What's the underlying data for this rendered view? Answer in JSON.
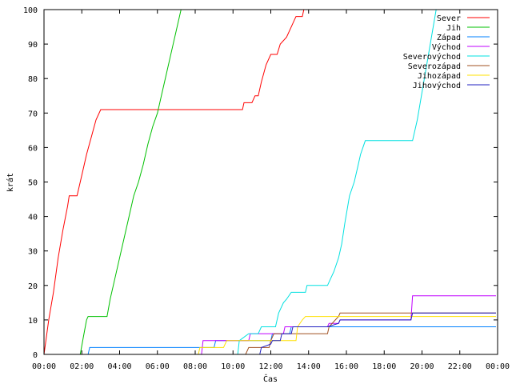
{
  "chart_data": {
    "type": "line",
    "title": "",
    "xlabel": "Čas",
    "ylabel": "krát",
    "xlim": [
      "00:00",
      "00:00"
    ],
    "ylim": [
      0,
      100
    ],
    "grid": false,
    "legend_position": "top-right",
    "x_ticks": [
      "00:00",
      "02:00",
      "04:00",
      "06:00",
      "08:00",
      "10:00",
      "12:00",
      "14:00",
      "16:00",
      "18:00",
      "20:00",
      "22:00",
      "00:00"
    ],
    "y_ticks": [
      "0",
      "10",
      "20",
      "30",
      "40",
      "50",
      "60",
      "70",
      "80",
      "90",
      "100"
    ],
    "series": [
      {
        "name": "Sever",
        "color": "#ff0000",
        "points": [
          [
            "00:00",
            0
          ],
          [
            "00:15",
            10
          ],
          [
            "00:30",
            18
          ],
          [
            "00:45",
            28
          ],
          [
            "01:00",
            36
          ],
          [
            "01:15",
            43
          ],
          [
            "01:20",
            46
          ],
          [
            "01:45",
            46
          ],
          [
            "02:00",
            52
          ],
          [
            "02:15",
            58
          ],
          [
            "02:30",
            63
          ],
          [
            "02:45",
            68
          ],
          [
            "03:00",
            71
          ],
          [
            "05:00",
            71
          ],
          [
            "07:00",
            71
          ],
          [
            "09:00",
            71
          ],
          [
            "10:30",
            71
          ],
          [
            "10:35",
            73
          ],
          [
            "11:00",
            73
          ],
          [
            "11:10",
            75
          ],
          [
            "11:20",
            75
          ],
          [
            "11:30",
            79
          ],
          [
            "11:45",
            84
          ],
          [
            "12:00",
            87
          ],
          [
            "12:20",
            87
          ],
          [
            "12:30",
            90
          ],
          [
            "12:50",
            92
          ],
          [
            "13:05",
            95
          ],
          [
            "13:20",
            98
          ],
          [
            "13:40",
            98
          ],
          [
            "13:45",
            100
          ]
        ]
      },
      {
        "name": "Jih",
        "color": "#00c000",
        "points": [
          [
            "01:55",
            0
          ],
          [
            "02:05",
            5
          ],
          [
            "02:15",
            10
          ],
          [
            "02:20",
            11
          ],
          [
            "03:20",
            11
          ],
          [
            "03:30",
            16
          ],
          [
            "03:45",
            22
          ],
          [
            "04:00",
            28
          ],
          [
            "04:15",
            34
          ],
          [
            "04:30",
            40
          ],
          [
            "04:45",
            46
          ],
          [
            "05:00",
            50
          ],
          [
            "05:15",
            55
          ],
          [
            "05:30",
            61
          ],
          [
            "05:45",
            66
          ],
          [
            "06:00",
            70
          ],
          [
            "06:15",
            76
          ],
          [
            "06:30",
            82
          ],
          [
            "06:45",
            88
          ],
          [
            "07:00",
            94
          ],
          [
            "07:15",
            100
          ]
        ]
      },
      {
        "name": "Západ",
        "color": "#0080ff",
        "points": [
          [
            "02:20",
            0
          ],
          [
            "02:25",
            2
          ],
          [
            "04:00",
            2
          ],
          [
            "06:00",
            2
          ],
          [
            "08:00",
            2
          ],
          [
            "09:00",
            2
          ],
          [
            "09:05",
            4
          ],
          [
            "12:00",
            4
          ],
          [
            "12:05",
            6
          ],
          [
            "13:00",
            6
          ],
          [
            "13:05",
            8
          ],
          [
            "16:00",
            8
          ],
          [
            "20:00",
            8
          ],
          [
            "23:55",
            8
          ]
        ]
      },
      {
        "name": "Východ",
        "color": "#c000ff",
        "points": [
          [
            "08:20",
            0
          ],
          [
            "08:25",
            4
          ],
          [
            "10:50",
            4
          ],
          [
            "10:55",
            6
          ],
          [
            "12:40",
            6
          ],
          [
            "12:45",
            8
          ],
          [
            "15:00",
            8
          ],
          [
            "15:05",
            9
          ],
          [
            "15:35",
            9
          ],
          [
            "15:40",
            10
          ],
          [
            "19:25",
            10
          ],
          [
            "19:30",
            17
          ],
          [
            "23:55",
            17
          ]
        ]
      },
      {
        "name": "Severovýchod",
        "color": "#00e0e0",
        "points": [
          [
            "10:15",
            0
          ],
          [
            "10:20",
            4
          ],
          [
            "10:50",
            6
          ],
          [
            "11:20",
            6
          ],
          [
            "11:30",
            8
          ],
          [
            "12:15",
            8
          ],
          [
            "12:25",
            12
          ],
          [
            "12:40",
            15
          ],
          [
            "12:50",
            16
          ],
          [
            "13:05",
            18
          ],
          [
            "13:50",
            18
          ],
          [
            "13:55",
            20
          ],
          [
            "15:00",
            20
          ],
          [
            "15:10",
            22
          ],
          [
            "15:20",
            24
          ],
          [
            "15:35",
            28
          ],
          [
            "15:45",
            32
          ],
          [
            "15:55",
            38
          ],
          [
            "16:10",
            46
          ],
          [
            "16:25",
            50
          ],
          [
            "16:35",
            54
          ],
          [
            "16:45",
            58
          ],
          [
            "17:00",
            62
          ],
          [
            "19:30",
            62
          ],
          [
            "19:45",
            68
          ],
          [
            "20:00",
            76
          ],
          [
            "20:15",
            84
          ],
          [
            "20:30",
            92
          ],
          [
            "20:45",
            100
          ]
        ]
      },
      {
        "name": "Severozápad",
        "color": "#a05020",
        "points": [
          [
            "10:40",
            0
          ],
          [
            "10:50",
            2
          ],
          [
            "11:55",
            2
          ],
          [
            "12:00",
            4
          ],
          [
            "12:10",
            6
          ],
          [
            "15:00",
            6
          ],
          [
            "15:05",
            8
          ],
          [
            "15:25",
            10
          ],
          [
            "15:35",
            11
          ],
          [
            "15:40",
            12
          ],
          [
            "18:00",
            12
          ],
          [
            "23:55",
            12
          ]
        ]
      },
      {
        "name": "Jihozápad",
        "color": "#ffe000",
        "points": [
          [
            "08:10",
            0
          ],
          [
            "08:15",
            2
          ],
          [
            "09:30",
            2
          ],
          [
            "09:40",
            4
          ],
          [
            "13:20",
            4
          ],
          [
            "13:25",
            8
          ],
          [
            "13:40",
            10
          ],
          [
            "13:50",
            11
          ],
          [
            "16:00",
            11
          ],
          [
            "20:00",
            11
          ],
          [
            "23:55",
            11
          ]
        ]
      },
      {
        "name": "Jihovýchod",
        "color": "#2020c0",
        "points": [
          [
            "11:25",
            0
          ],
          [
            "11:30",
            2
          ],
          [
            "12:00",
            3
          ],
          [
            "12:05",
            4
          ],
          [
            "12:30",
            4
          ],
          [
            "12:35",
            6
          ],
          [
            "13:05",
            6
          ],
          [
            "13:10",
            8
          ],
          [
            "15:00",
            8
          ],
          [
            "15:35",
            9
          ],
          [
            "15:40",
            10
          ],
          [
            "19:25",
            10
          ],
          [
            "19:30",
            12
          ],
          [
            "23:55",
            12
          ]
        ]
      }
    ]
  }
}
